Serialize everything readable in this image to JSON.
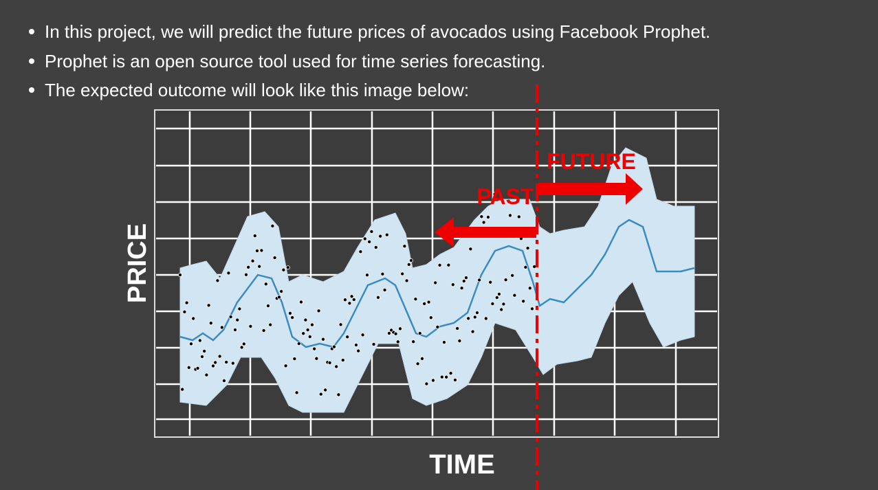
{
  "bullets": [
    "In this project, we will predict the future prices of avocados using Facebook Prophet.",
    "Prophet is an open source tool used for time series forecasting.",
    "The expected outcome will look like this image below:"
  ],
  "figure": {
    "y_label": "PRICE",
    "x_label": "TIME",
    "past_label": "PAST",
    "future_label": "FUTURE"
  }
}
